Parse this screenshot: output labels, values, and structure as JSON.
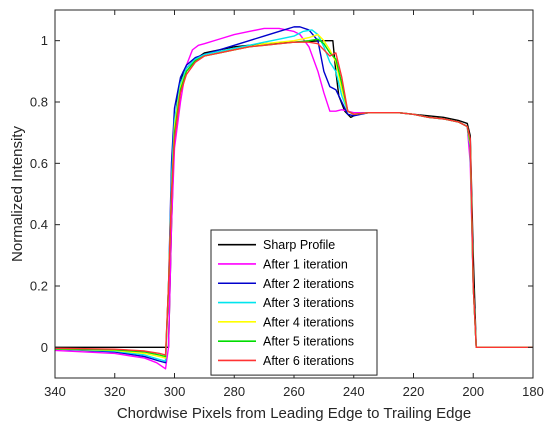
{
  "chart_data": {
    "type": "line",
    "xlabel": "Chordwise Pixels from Leading Edge to Trailing Edge",
    "ylabel": "Normalized Intensity",
    "xlim": [
      340,
      180
    ],
    "ylim": [
      -0.1,
      1.1
    ],
    "x_reversed": true,
    "grid": false,
    "legend_position": "bottom-center",
    "xticks": [
      340,
      320,
      300,
      280,
      260,
      240,
      220,
      200,
      180
    ],
    "yticks": [
      0,
      0.2,
      0.4,
      0.6,
      0.8,
      1
    ],
    "ytick_labels": [
      "0",
      "0.2",
      "0.4",
      "0.6",
      "0.8",
      "1"
    ],
    "series": [
      {
        "name": "Sharp Profile",
        "color": "#000000",
        "points": [
          [
            340,
            0
          ],
          [
            302,
            0
          ],
          [
            301,
            0.4
          ],
          [
            300,
            0.7
          ],
          [
            299,
            0.82
          ],
          [
            297,
            0.9
          ],
          [
            293,
            0.94
          ],
          [
            290,
            0.96
          ],
          [
            280,
            0.98
          ],
          [
            270,
            0.99
          ],
          [
            260,
            0.995
          ],
          [
            250,
            1.0
          ],
          [
            247,
            1.0
          ],
          [
            246,
            0.9
          ],
          [
            245,
            0.82
          ],
          [
            243,
            0.77
          ],
          [
            241,
            0.75
          ],
          [
            239,
            0.76
          ],
          [
            235,
            0.765
          ],
          [
            230,
            0.765
          ],
          [
            225,
            0.765
          ],
          [
            220,
            0.76
          ],
          [
            215,
            0.755
          ],
          [
            210,
            0.75
          ],
          [
            205,
            0.74
          ],
          [
            202,
            0.73
          ],
          [
            201,
            0.69
          ],
          [
            200,
            0.3
          ],
          [
            199,
            0
          ],
          [
            180,
            0
          ]
        ]
      },
      {
        "name": "After 1 iteration",
        "color": "#ff00ff",
        "points": [
          [
            340,
            -0.01
          ],
          [
            320,
            -0.02
          ],
          [
            310,
            -0.035
          ],
          [
            306,
            -0.05
          ],
          [
            303,
            -0.07
          ],
          [
            302,
            0.0
          ],
          [
            301,
            0.4
          ],
          [
            300,
            0.65
          ],
          [
            298,
            0.8
          ],
          [
            296,
            0.92
          ],
          [
            294,
            0.97
          ],
          [
            292,
            0.985
          ],
          [
            290,
            0.99
          ],
          [
            285,
            1.005
          ],
          [
            280,
            1.02
          ],
          [
            275,
            1.03
          ],
          [
            270,
            1.04
          ],
          [
            265,
            1.04
          ],
          [
            260,
            1.03
          ],
          [
            258,
            1.02
          ],
          [
            255,
            0.98
          ],
          [
            252,
            0.9
          ],
          [
            250,
            0.83
          ],
          [
            248,
            0.77
          ],
          [
            246,
            0.77
          ],
          [
            244,
            0.775
          ],
          [
            242,
            0.77
          ],
          [
            240,
            0.765
          ],
          [
            235,
            0.765
          ],
          [
            230,
            0.765
          ],
          [
            225,
            0.765
          ],
          [
            220,
            0.76
          ],
          [
            215,
            0.75
          ],
          [
            210,
            0.745
          ],
          [
            205,
            0.735
          ],
          [
            202,
            0.72
          ],
          [
            201,
            0.6
          ],
          [
            200,
            0.2
          ],
          [
            199,
            0
          ],
          [
            180,
            0
          ]
        ]
      },
      {
        "name": "After 2 iterations",
        "color": "#0000cc",
        "points": [
          [
            340,
            -0.005
          ],
          [
            320,
            -0.015
          ],
          [
            310,
            -0.03
          ],
          [
            305,
            -0.045
          ],
          [
            303,
            -0.05
          ],
          [
            302,
            0.2
          ],
          [
            301,
            0.6
          ],
          [
            300,
            0.78
          ],
          [
            298,
            0.88
          ],
          [
            296,
            0.92
          ],
          [
            293,
            0.945
          ],
          [
            290,
            0.955
          ],
          [
            285,
            0.97
          ],
          [
            280,
            0.985
          ],
          [
            275,
            1.0
          ],
          [
            270,
            1.015
          ],
          [
            265,
            1.03
          ],
          [
            260,
            1.045
          ],
          [
            258,
            1.045
          ],
          [
            255,
            1.035
          ],
          [
            252,
            1.0
          ],
          [
            250,
            0.9
          ],
          [
            248,
            0.85
          ],
          [
            246,
            0.84
          ],
          [
            244,
            0.8
          ],
          [
            242,
            0.76
          ],
          [
            240,
            0.755
          ],
          [
            235,
            0.765
          ],
          [
            230,
            0.765
          ],
          [
            225,
            0.765
          ],
          [
            220,
            0.76
          ],
          [
            215,
            0.75
          ],
          [
            210,
            0.745
          ],
          [
            205,
            0.735
          ],
          [
            202,
            0.72
          ],
          [
            201,
            0.65
          ],
          [
            200,
            0.2
          ],
          [
            199,
            0
          ],
          [
            180,
            0
          ]
        ]
      },
      {
        "name": "After 3 iterations",
        "color": "#00e5ee",
        "points": [
          [
            340,
            -0.005
          ],
          [
            320,
            -0.012
          ],
          [
            310,
            -0.025
          ],
          [
            305,
            -0.04
          ],
          [
            303,
            -0.045
          ],
          [
            302,
            0.2
          ],
          [
            301,
            0.55
          ],
          [
            300,
            0.74
          ],
          [
            298,
            0.86
          ],
          [
            296,
            0.91
          ],
          [
            293,
            0.94
          ],
          [
            290,
            0.955
          ],
          [
            285,
            0.965
          ],
          [
            280,
            0.975
          ],
          [
            275,
            0.985
          ],
          [
            270,
            0.995
          ],
          [
            265,
            1.005
          ],
          [
            260,
            1.015
          ],
          [
            257,
            1.03
          ],
          [
            254,
            1.035
          ],
          [
            252,
            1.02
          ],
          [
            250,
            0.98
          ],
          [
            248,
            0.93
          ],
          [
            246,
            0.9
          ],
          [
            244,
            0.82
          ],
          [
            242,
            0.77
          ],
          [
            240,
            0.76
          ],
          [
            235,
            0.765
          ],
          [
            230,
            0.765
          ],
          [
            225,
            0.765
          ],
          [
            220,
            0.76
          ],
          [
            215,
            0.75
          ],
          [
            210,
            0.745
          ],
          [
            205,
            0.735
          ],
          [
            202,
            0.72
          ],
          [
            201,
            0.65
          ],
          [
            200,
            0.2
          ],
          [
            199,
            0
          ],
          [
            180,
            0
          ]
        ]
      },
      {
        "name": "After 4 iterations",
        "color": "#ffff00",
        "points": [
          [
            340,
            -0.005
          ],
          [
            320,
            -0.01
          ],
          [
            310,
            -0.02
          ],
          [
            305,
            -0.03
          ],
          [
            303,
            -0.035
          ],
          [
            302,
            0.2
          ],
          [
            301,
            0.5
          ],
          [
            300,
            0.72
          ],
          [
            298,
            0.85
          ],
          [
            296,
            0.9
          ],
          [
            293,
            0.935
          ],
          [
            290,
            0.95
          ],
          [
            285,
            0.96
          ],
          [
            280,
            0.97
          ],
          [
            275,
            0.98
          ],
          [
            270,
            0.99
          ],
          [
            265,
            0.995
          ],
          [
            260,
            1.0
          ],
          [
            255,
            1.01
          ],
          [
            252,
            1.02
          ],
          [
            250,
            1.0
          ],
          [
            248,
            0.97
          ],
          [
            246,
            0.93
          ],
          [
            244,
            0.84
          ],
          [
            242,
            0.77
          ],
          [
            240,
            0.76
          ],
          [
            235,
            0.765
          ],
          [
            230,
            0.765
          ],
          [
            225,
            0.765
          ],
          [
            220,
            0.76
          ],
          [
            215,
            0.75
          ],
          [
            210,
            0.745
          ],
          [
            205,
            0.735
          ],
          [
            202,
            0.72
          ],
          [
            201,
            0.66
          ],
          [
            200,
            0.2
          ],
          [
            199,
            0
          ],
          [
            180,
            0
          ]
        ]
      },
      {
        "name": "After 5 iterations",
        "color": "#00dd00",
        "points": [
          [
            340,
            -0.005
          ],
          [
            320,
            -0.008
          ],
          [
            310,
            -0.015
          ],
          [
            305,
            -0.025
          ],
          [
            303,
            -0.03
          ],
          [
            302,
            0.2
          ],
          [
            301,
            0.5
          ],
          [
            300,
            0.7
          ],
          [
            298,
            0.84
          ],
          [
            296,
            0.9
          ],
          [
            293,
            0.935
          ],
          [
            290,
            0.95
          ],
          [
            285,
            0.96
          ],
          [
            280,
            0.97
          ],
          [
            275,
            0.98
          ],
          [
            270,
            0.985
          ],
          [
            265,
            0.99
          ],
          [
            260,
            0.995
          ],
          [
            255,
            1.0
          ],
          [
            252,
            1.005
          ],
          [
            250,
            0.99
          ],
          [
            248,
            0.96
          ],
          [
            246,
            0.94
          ],
          [
            244,
            0.86
          ],
          [
            242,
            0.77
          ],
          [
            240,
            0.76
          ],
          [
            235,
            0.765
          ],
          [
            230,
            0.765
          ],
          [
            225,
            0.765
          ],
          [
            220,
            0.76
          ],
          [
            215,
            0.75
          ],
          [
            210,
            0.745
          ],
          [
            205,
            0.735
          ],
          [
            202,
            0.72
          ],
          [
            201,
            0.67
          ],
          [
            200,
            0.2
          ],
          [
            199,
            0
          ],
          [
            180,
            0
          ]
        ]
      },
      {
        "name": "After 6 iterations",
        "color": "#ff3333",
        "points": [
          [
            340,
            -0.003
          ],
          [
            320,
            -0.006
          ],
          [
            310,
            -0.012
          ],
          [
            305,
            -0.02
          ],
          [
            303,
            -0.025
          ],
          [
            302,
            0.2
          ],
          [
            301,
            0.5
          ],
          [
            300,
            0.68
          ],
          [
            298,
            0.83
          ],
          [
            296,
            0.89
          ],
          [
            293,
            0.93
          ],
          [
            290,
            0.95
          ],
          [
            285,
            0.96
          ],
          [
            280,
            0.97
          ],
          [
            275,
            0.98
          ],
          [
            270,
            0.985
          ],
          [
            265,
            0.99
          ],
          [
            260,
            0.995
          ],
          [
            255,
            0.995
          ],
          [
            252,
            0.99
          ],
          [
            250,
            0.97
          ],
          [
            248,
            0.95
          ],
          [
            246,
            0.96
          ],
          [
            244,
            0.88
          ],
          [
            242,
            0.77
          ],
          [
            240,
            0.76
          ],
          [
            235,
            0.765
          ],
          [
            230,
            0.765
          ],
          [
            225,
            0.765
          ],
          [
            220,
            0.76
          ],
          [
            215,
            0.75
          ],
          [
            210,
            0.745
          ],
          [
            205,
            0.735
          ],
          [
            202,
            0.72
          ],
          [
            201,
            0.68
          ],
          [
            200,
            0.2
          ],
          [
            199,
            0
          ],
          [
            180,
            0
          ]
        ]
      }
    ]
  }
}
